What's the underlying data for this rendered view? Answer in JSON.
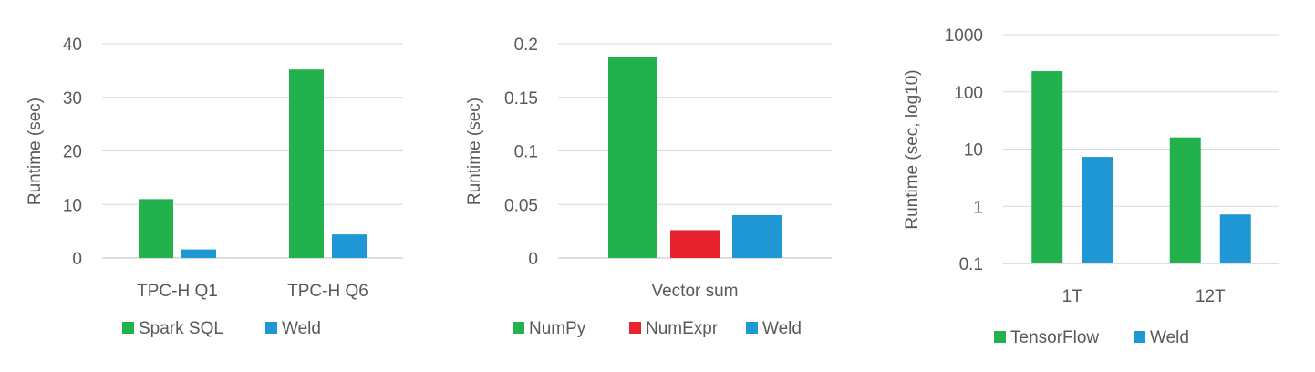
{
  "chart_data": [
    {
      "type": "bar",
      "title": "",
      "xlabel": "",
      "ylabel": "Runtime (sec)",
      "categories": [
        "TPC-H Q1",
        "TPC-H Q6"
      ],
      "series": [
        {
          "name": "Spark SQL",
          "color": "#22b14c",
          "values": [
            11,
            35.2
          ]
        },
        {
          "name": "Weld",
          "color": "#1f97d4",
          "values": [
            1.6,
            4.4
          ]
        }
      ],
      "ylim": [
        0,
        40
      ],
      "yticks": [
        0,
        10,
        20,
        30,
        40
      ],
      "ytick_labels": [
        "0",
        "10",
        "20",
        "30",
        "40"
      ],
      "scale": "linear",
      "grid": true,
      "legend_position": "bottom"
    },
    {
      "type": "bar",
      "title": "",
      "xlabel": "",
      "ylabel": "Runtime (sec)",
      "categories": [
        "Vector sum"
      ],
      "series": [
        {
          "name": "NumPy",
          "color": "#22b14c",
          "values": [
            0.188
          ]
        },
        {
          "name": "NumExpr",
          "color": "#e8222e",
          "values": [
            0.026
          ]
        },
        {
          "name": "Weld",
          "color": "#1f97d4",
          "values": [
            0.04
          ]
        }
      ],
      "ylim": [
        0,
        0.2
      ],
      "yticks": [
        0,
        0.05,
        0.1,
        0.15,
        0.2
      ],
      "ytick_labels": [
        "0",
        "0.05",
        "0.1",
        "0.15",
        "0.2"
      ],
      "scale": "linear",
      "grid": true,
      "legend_position": "bottom"
    },
    {
      "type": "bar",
      "title": "",
      "xlabel": "",
      "ylabel": "Runtime (sec, log10)",
      "categories": [
        "1T",
        "12T"
      ],
      "series": [
        {
          "name": "TensorFlow",
          "color": "#22b14c",
          "values": [
            230,
            16
          ]
        },
        {
          "name": "Weld",
          "color": "#1f97d4",
          "values": [
            7.3,
            0.72
          ]
        }
      ],
      "ylim": [
        0.1,
        1000
      ],
      "yticks": [
        0.1,
        1,
        10,
        100,
        1000
      ],
      "ytick_labels": [
        "0.1",
        "1",
        "10",
        "100",
        "1000"
      ],
      "scale": "log",
      "grid": true,
      "legend_position": "bottom"
    }
  ]
}
